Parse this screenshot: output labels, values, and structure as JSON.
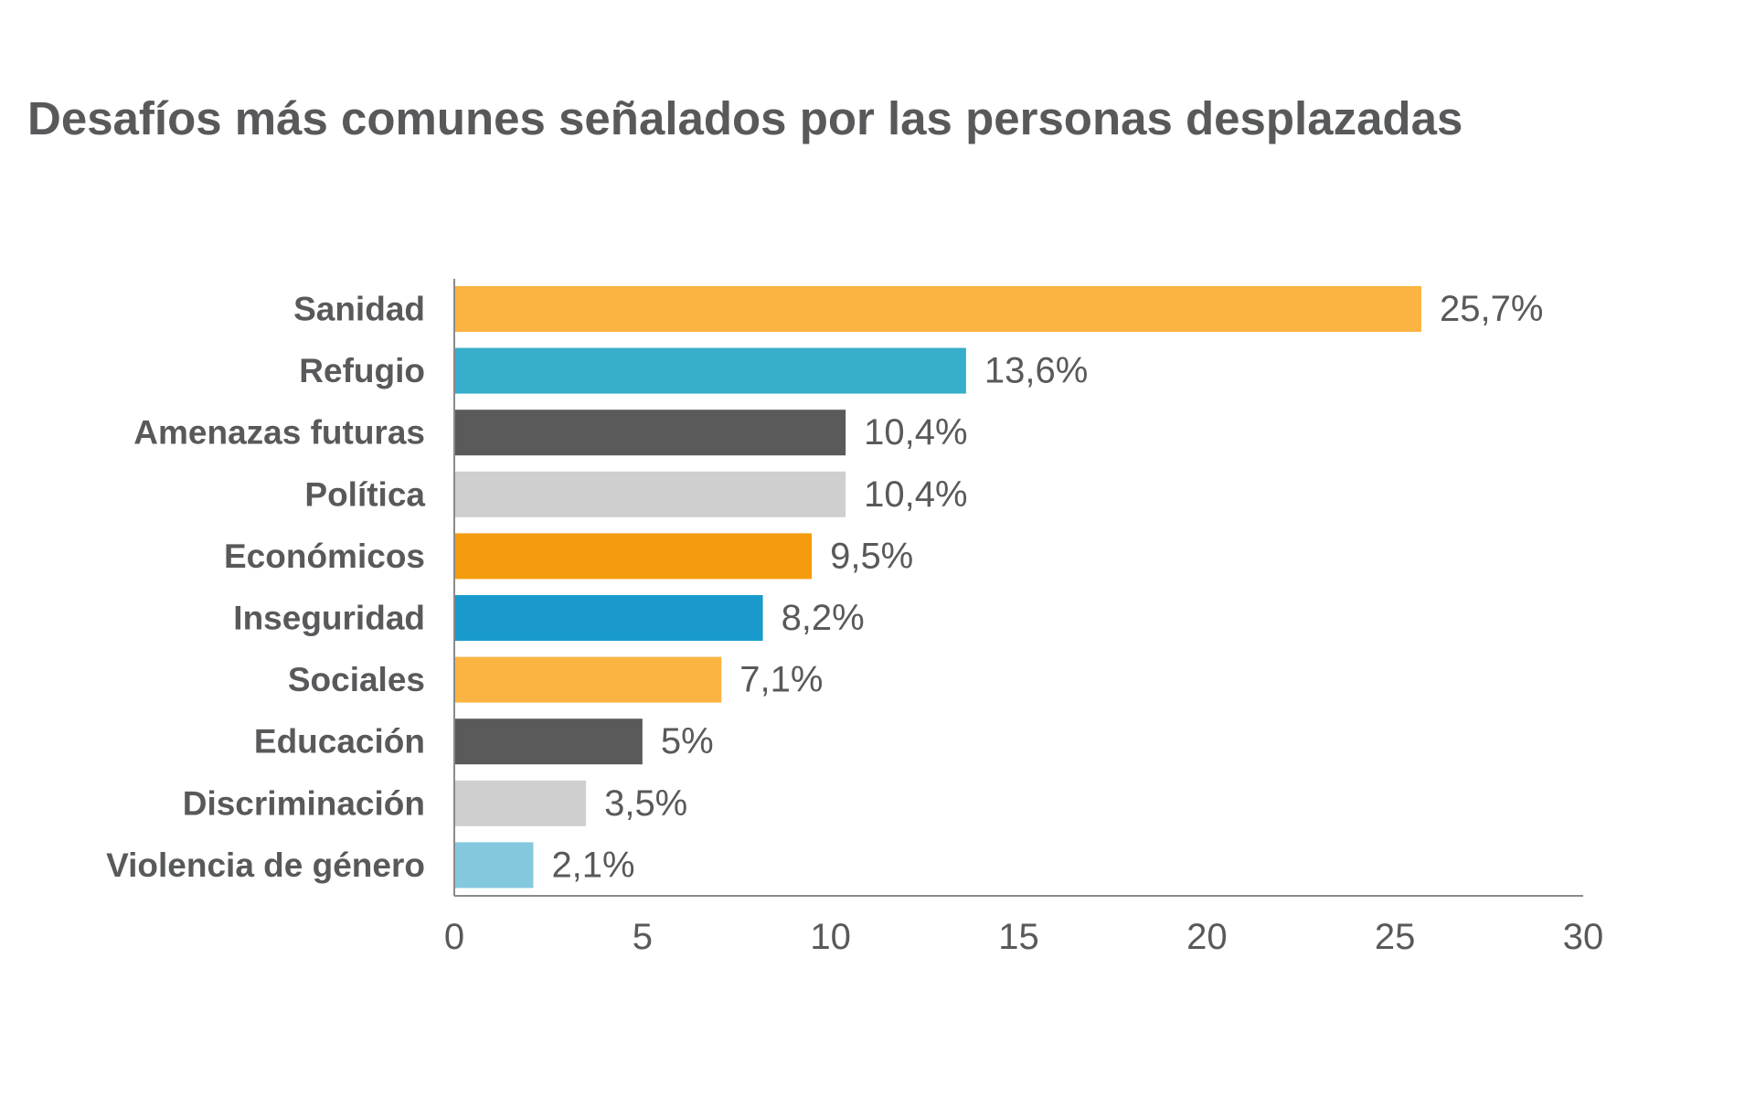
{
  "chart_data": {
    "type": "bar",
    "orientation": "horizontal",
    "title": "Desafíos más comunes señalados por las personas desplazadas",
    "xlabel": "",
    "ylabel": "",
    "xlim": [
      0,
      30
    ],
    "ticks": [
      "0",
      "5",
      "10",
      "15",
      "20",
      "25",
      "30"
    ],
    "grid": false,
    "legend": "none",
    "categories": [
      "Sanidad",
      "Refugio",
      "Amenazas futuras",
      "Política",
      "Económicos",
      "Inseguridad",
      "Sociales",
      "Educación",
      "Discriminación",
      "Violencia de género"
    ],
    "values": [
      25.7,
      13.6,
      10.4,
      10.4,
      9.5,
      8.2,
      7.1,
      5,
      3.5,
      2.1
    ],
    "value_labels": [
      "25,7%",
      "13,6%",
      "10,4%",
      "10,4%",
      "9,5%",
      "8,2%",
      "7,1%",
      "5%",
      "3,5%",
      "2,1%"
    ],
    "colors": [
      "#fbb441",
      "#37aecb",
      "#5b5a5b",
      "#cfcfcf",
      "#f49c0d",
      "#1a9acc",
      "#fbb441",
      "#5b5a5b",
      "#cfcfcf",
      "#84c8de"
    ]
  }
}
